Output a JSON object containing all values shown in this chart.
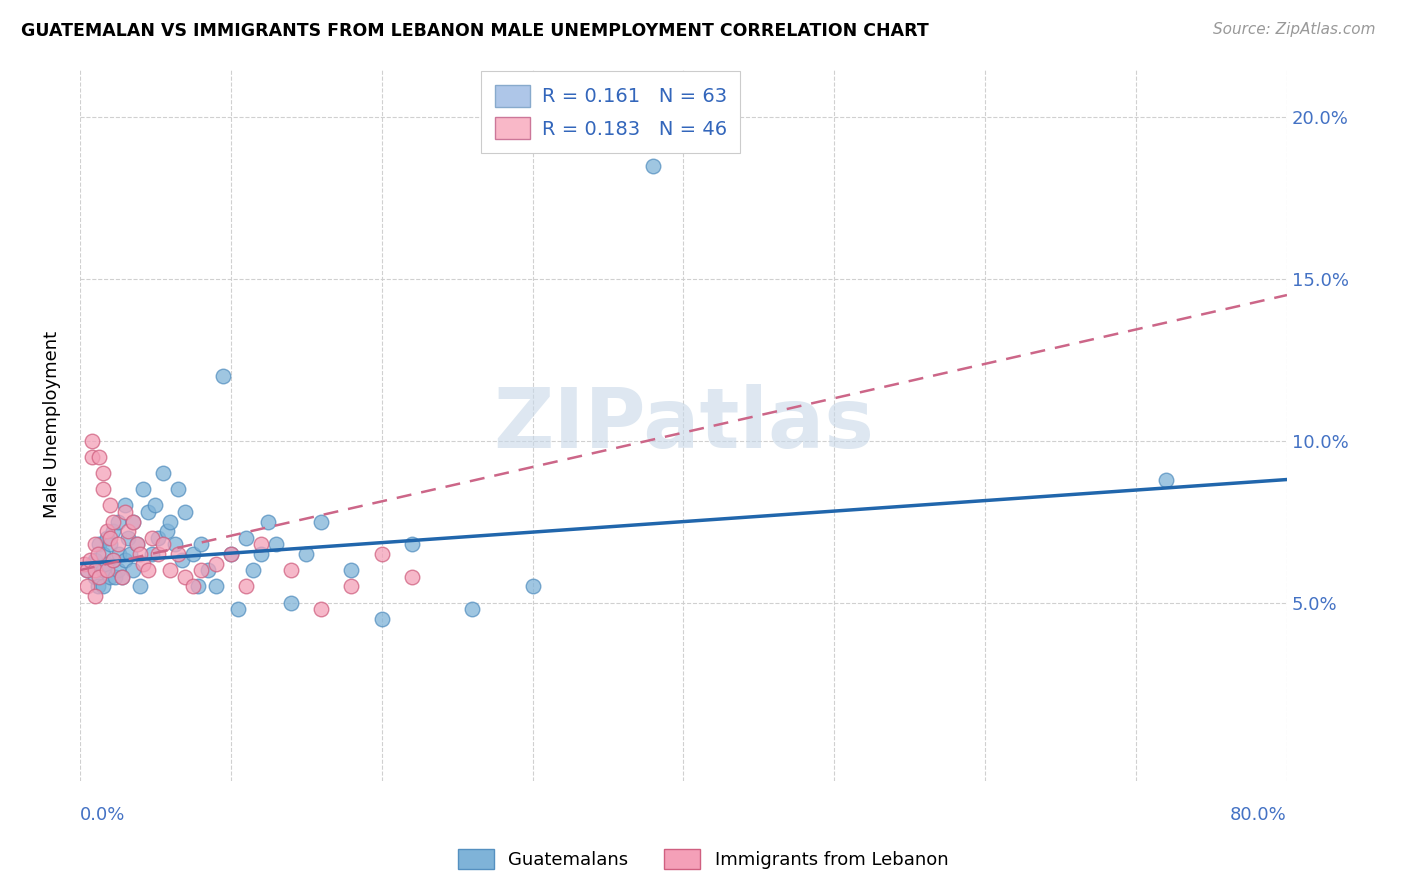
{
  "title": "GUATEMALAN VS IMMIGRANTS FROM LEBANON MALE UNEMPLOYMENT CORRELATION CHART",
  "source": "Source: ZipAtlas.com",
  "ylabel": "Male Unemployment",
  "legend_entry1": {
    "label": "Guatemalans",
    "R": "0.161",
    "N": "63",
    "color": "#aec6e8"
  },
  "legend_entry2": {
    "label": "Immigrants from Lebanon",
    "R": "0.183",
    "N": "46",
    "color": "#f9b8c8"
  },
  "blue_dot_color": "#7fb3d8",
  "blue_dot_edge": "#5590c0",
  "pink_dot_color": "#f4a0b8",
  "pink_dot_edge": "#d06080",
  "blue_line_color": "#2166ac",
  "pink_line_color": "#cc6688",
  "watermark_color": "#c8d8e8",
  "y_ticks": [
    0.05,
    0.1,
    0.15,
    0.2
  ],
  "y_tick_labels": [
    "5.0%",
    "10.0%",
    "15.0%",
    "20.0%"
  ],
  "xlim": [
    0.0,
    0.8
  ],
  "ylim": [
    -0.005,
    0.215
  ],
  "blue_scatter_x": [
    0.005,
    0.008,
    0.01,
    0.01,
    0.012,
    0.013,
    0.015,
    0.015,
    0.015,
    0.018,
    0.018,
    0.02,
    0.02,
    0.022,
    0.022,
    0.023,
    0.025,
    0.025,
    0.026,
    0.028,
    0.03,
    0.03,
    0.032,
    0.033,
    0.035,
    0.035,
    0.038,
    0.04,
    0.042,
    0.045,
    0.048,
    0.05,
    0.052,
    0.055,
    0.058,
    0.06,
    0.063,
    0.065,
    0.068,
    0.07,
    0.075,
    0.078,
    0.08,
    0.085,
    0.09,
    0.095,
    0.1,
    0.105,
    0.11,
    0.115,
    0.12,
    0.125,
    0.13,
    0.14,
    0.15,
    0.16,
    0.18,
    0.2,
    0.22,
    0.26,
    0.3,
    0.38,
    0.72
  ],
  "blue_scatter_y": [
    0.06,
    0.062,
    0.063,
    0.058,
    0.055,
    0.068,
    0.065,
    0.06,
    0.055,
    0.07,
    0.062,
    0.068,
    0.058,
    0.072,
    0.063,
    0.058,
    0.075,
    0.06,
    0.065,
    0.058,
    0.08,
    0.063,
    0.07,
    0.065,
    0.075,
    0.06,
    0.068,
    0.055,
    0.085,
    0.078,
    0.065,
    0.08,
    0.07,
    0.09,
    0.072,
    0.075,
    0.068,
    0.085,
    0.063,
    0.078,
    0.065,
    0.055,
    0.068,
    0.06,
    0.055,
    0.12,
    0.065,
    0.048,
    0.07,
    0.06,
    0.065,
    0.075,
    0.068,
    0.05,
    0.065,
    0.075,
    0.06,
    0.045,
    0.068,
    0.048,
    0.055,
    0.185,
    0.088
  ],
  "pink_scatter_x": [
    0.003,
    0.005,
    0.005,
    0.007,
    0.008,
    0.008,
    0.01,
    0.01,
    0.01,
    0.012,
    0.013,
    0.013,
    0.015,
    0.015,
    0.018,
    0.018,
    0.02,
    0.02,
    0.022,
    0.022,
    0.025,
    0.028,
    0.03,
    0.032,
    0.035,
    0.038,
    0.04,
    0.042,
    0.045,
    0.048,
    0.052,
    0.055,
    0.06,
    0.065,
    0.07,
    0.075,
    0.08,
    0.09,
    0.1,
    0.11,
    0.12,
    0.14,
    0.16,
    0.18,
    0.2,
    0.22
  ],
  "pink_scatter_y": [
    0.062,
    0.06,
    0.055,
    0.063,
    0.1,
    0.095,
    0.068,
    0.06,
    0.052,
    0.065,
    0.095,
    0.058,
    0.09,
    0.085,
    0.072,
    0.06,
    0.08,
    0.07,
    0.075,
    0.063,
    0.068,
    0.058,
    0.078,
    0.072,
    0.075,
    0.068,
    0.065,
    0.062,
    0.06,
    0.07,
    0.065,
    0.068,
    0.06,
    0.065,
    0.058,
    0.055,
    0.06,
    0.062,
    0.065,
    0.055,
    0.068,
    0.06,
    0.048,
    0.055,
    0.065,
    0.058
  ]
}
